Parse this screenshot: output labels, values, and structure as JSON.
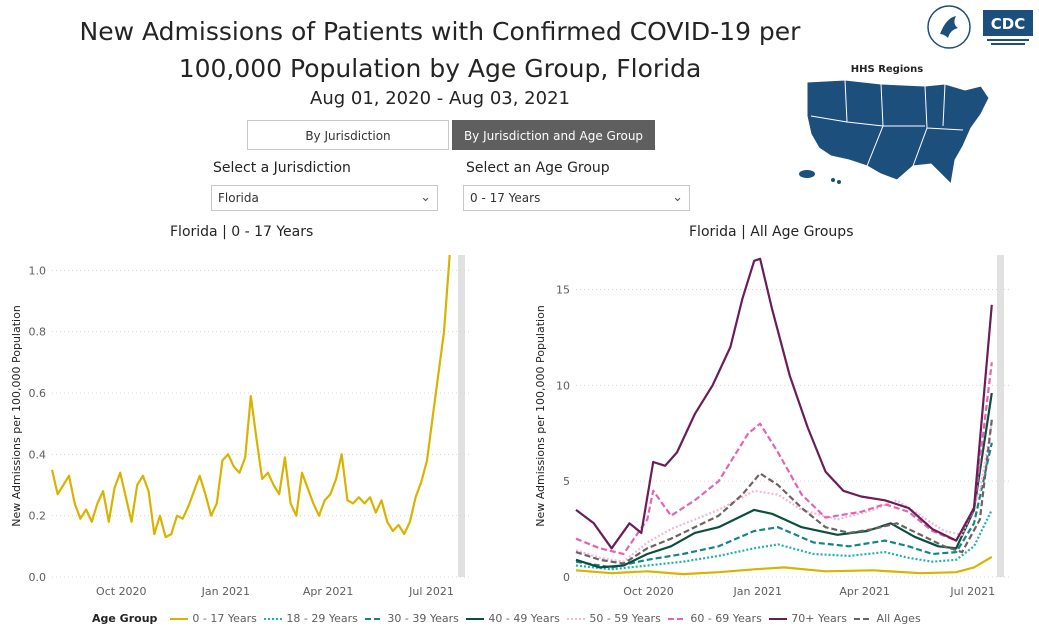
{
  "header": {
    "title_line1": "New Admissions of Patients with Confirmed COVID-19 per",
    "title_line2": "100,000 Population by Age Group, Florida",
    "date_range": "Aug 01, 2020 - Aug 03, 2021"
  },
  "logos": {
    "cdc": "CDC",
    "hhs_regions": "HHS Regions"
  },
  "tabs": {
    "by_jurisdiction": "By Jurisdiction",
    "by_jurisdiction_age": "By Jurisdiction and Age Group"
  },
  "filters": {
    "jurisdiction_label": "Select a Jurisdiction",
    "jurisdiction_value": "Florida",
    "age_label": "Select an Age Group",
    "age_value": "0 - 17 Years"
  },
  "colors": {
    "c0_17": "#d9b300",
    "c18_29": "#20b2aa",
    "c30_39": "#148585",
    "c40_49": "#0b4f3f",
    "c50_59": "#f2b8d9",
    "c60_69": "#e066b3",
    "c70": "#6b1d57",
    "call": "#6e6262",
    "map_fill": "#1d4f7c",
    "tab_active": "#5f5f5f"
  },
  "chart_data": [
    {
      "type": "line",
      "title": "Florida | 0 - 17 Years",
      "xlabel": "",
      "ylabel": "New Admissions per 100,000 Population",
      "ylim": [
        0,
        1.05
      ],
      "yticks": [
        "0.0",
        "0.2",
        "0.4",
        "0.6",
        "0.8",
        "1.0"
      ],
      "xticks": [
        "Oct 2020",
        "Jan 2021",
        "Apr 2021",
        "Jul 2021"
      ],
      "x_unit": "days since 2020-08-01",
      "xlim": [
        0,
        367
      ],
      "xtick_days": [
        61,
        153,
        243,
        334
      ],
      "series": [
        {
          "name": "0 - 17 Years",
          "color_key": "c0_17",
          "dash": "solid",
          "points": [
            [
              0,
              0.35
            ],
            [
              5,
              0.27
            ],
            [
              10,
              0.3
            ],
            [
              15,
              0.33
            ],
            [
              20,
              0.24
            ],
            [
              25,
              0.19
            ],
            [
              30,
              0.22
            ],
            [
              35,
              0.18
            ],
            [
              40,
              0.24
            ],
            [
              45,
              0.28
            ],
            [
              50,
              0.18
            ],
            [
              55,
              0.29
            ],
            [
              60,
              0.34
            ],
            [
              65,
              0.26
            ],
            [
              70,
              0.18
            ],
            [
              75,
              0.3
            ],
            [
              80,
              0.33
            ],
            [
              85,
              0.28
            ],
            [
              90,
              0.14
            ],
            [
              95,
              0.2
            ],
            [
              100,
              0.13
            ],
            [
              105,
              0.14
            ],
            [
              110,
              0.2
            ],
            [
              115,
              0.19
            ],
            [
              120,
              0.23
            ],
            [
              125,
              0.28
            ],
            [
              130,
              0.33
            ],
            [
              135,
              0.27
            ],
            [
              140,
              0.2
            ],
            [
              145,
              0.24
            ],
            [
              150,
              0.38
            ],
            [
              155,
              0.4
            ],
            [
              160,
              0.36
            ],
            [
              165,
              0.34
            ],
            [
              170,
              0.39
            ],
            [
              175,
              0.59
            ],
            [
              180,
              0.45
            ],
            [
              185,
              0.32
            ],
            [
              190,
              0.34
            ],
            [
              195,
              0.3
            ],
            [
              200,
              0.27
            ],
            [
              205,
              0.39
            ],
            [
              210,
              0.24
            ],
            [
              215,
              0.2
            ],
            [
              220,
              0.34
            ],
            [
              225,
              0.29
            ],
            [
              230,
              0.24
            ],
            [
              235,
              0.2
            ],
            [
              240,
              0.25
            ],
            [
              245,
              0.27
            ],
            [
              250,
              0.32
            ],
            [
              255,
              0.4
            ],
            [
              260,
              0.25
            ],
            [
              265,
              0.24
            ],
            [
              270,
              0.26
            ],
            [
              275,
              0.24
            ],
            [
              280,
              0.26
            ],
            [
              285,
              0.21
            ],
            [
              290,
              0.25
            ],
            [
              295,
              0.18
            ],
            [
              300,
              0.15
            ],
            [
              305,
              0.17
            ],
            [
              310,
              0.14
            ],
            [
              315,
              0.18
            ],
            [
              320,
              0.26
            ],
            [
              325,
              0.31
            ],
            [
              330,
              0.38
            ],
            [
              335,
              0.52
            ],
            [
              340,
              0.66
            ],
            [
              345,
              0.8
            ],
            [
              350,
              1.05
            ]
          ]
        }
      ]
    },
    {
      "type": "line",
      "title": "Florida | All Age Groups",
      "xlabel": "",
      "ylabel": "New Admissions per 100,000 Population",
      "ylim": [
        0,
        16.8
      ],
      "yticks": [
        "0",
        "5",
        "10",
        "15"
      ],
      "ytick_values": [
        0,
        5,
        10,
        15
      ],
      "xticks": [
        "Oct 2020",
        "Jan 2021",
        "Apr 2021",
        "Jul 2021"
      ],
      "x_unit": "days since 2020-08-01",
      "xlim": [
        0,
        367
      ],
      "xtick_days": [
        61,
        153,
        243,
        334
      ],
      "legend_title": "Age Group",
      "series": [
        {
          "name": "0 - 17 Years",
          "color_key": "c0_17",
          "dash": "solid",
          "points": [
            [
              0,
              0.35
            ],
            [
              30,
              0.2
            ],
            [
              60,
              0.3
            ],
            [
              90,
              0.15
            ],
            [
              120,
              0.25
            ],
            [
              150,
              0.4
            ],
            [
              175,
              0.5
            ],
            [
              210,
              0.3
            ],
            [
              250,
              0.35
            ],
            [
              290,
              0.2
            ],
            [
              320,
              0.25
            ],
            [
              335,
              0.5
            ],
            [
              350,
              1.05
            ]
          ]
        },
        {
          "name": "18 - 29 Years",
          "color_key": "c18_29",
          "dash": "dot",
          "points": [
            [
              0,
              0.6
            ],
            [
              30,
              0.4
            ],
            [
              60,
              0.6
            ],
            [
              90,
              0.8
            ],
            [
              120,
              1.1
            ],
            [
              150,
              1.5
            ],
            [
              170,
              1.7
            ],
            [
              200,
              1.2
            ],
            [
              230,
              1.1
            ],
            [
              260,
              1.3
            ],
            [
              280,
              1.0
            ],
            [
              300,
              0.8
            ],
            [
              320,
              0.9
            ],
            [
              335,
              1.6
            ],
            [
              350,
              3.5
            ]
          ]
        },
        {
          "name": "30 - 39 Years",
          "color_key": "c30_39",
          "dash": "dash",
          "points": [
            [
              0,
              0.8
            ],
            [
              30,
              0.5
            ],
            [
              60,
              0.9
            ],
            [
              90,
              1.2
            ],
            [
              120,
              1.6
            ],
            [
              150,
              2.4
            ],
            [
              170,
              2.6
            ],
            [
              200,
              1.8
            ],
            [
              230,
              1.6
            ],
            [
              260,
              1.9
            ],
            [
              280,
              1.6
            ],
            [
              300,
              1.2
            ],
            [
              320,
              1.3
            ],
            [
              335,
              2.8
            ],
            [
              350,
              7.0
            ]
          ]
        },
        {
          "name": "40 - 49 Years",
          "color_key": "c40_49",
          "dash": "solid",
          "points": [
            [
              0,
              0.9
            ],
            [
              20,
              0.5
            ],
            [
              40,
              0.6
            ],
            [
              60,
              1.2
            ],
            [
              80,
              1.6
            ],
            [
              100,
              2.3
            ],
            [
              120,
              2.6
            ],
            [
              150,
              3.5
            ],
            [
              165,
              3.3
            ],
            [
              190,
              2.6
            ],
            [
              220,
              2.2
            ],
            [
              245,
              2.4
            ],
            [
              265,
              2.8
            ],
            [
              285,
              2.1
            ],
            [
              305,
              1.6
            ],
            [
              320,
              1.5
            ],
            [
              335,
              3.5
            ],
            [
              350,
              9.6
            ]
          ]
        },
        {
          "name": "50 - 59 Years",
          "color_key": "c50_59",
          "dash": "dot",
          "points": [
            [
              0,
              1.4
            ],
            [
              20,
              1.0
            ],
            [
              40,
              0.8
            ],
            [
              60,
              1.8
            ],
            [
              80,
              2.5
            ],
            [
              100,
              3.0
            ],
            [
              120,
              3.5
            ],
            [
              150,
              4.5
            ],
            [
              170,
              4.3
            ],
            [
              190,
              3.5
            ],
            [
              220,
              3.0
            ],
            [
              250,
              3.5
            ],
            [
              270,
              4.0
            ],
            [
              290,
              3.2
            ],
            [
              310,
              2.4
            ],
            [
              325,
              2.2
            ],
            [
              340,
              4.5
            ],
            [
              350,
              8.0
            ]
          ]
        },
        {
          "name": "60 - 69 Years",
          "color_key": "c60_69",
          "dash": "dash",
          "points": [
            [
              0,
              2.0
            ],
            [
              20,
              1.5
            ],
            [
              40,
              1.2
            ],
            [
              60,
              3.0
            ],
            [
              65,
              4.5
            ],
            [
              80,
              3.2
            ],
            [
              100,
              4.0
            ],
            [
              120,
              5.0
            ],
            [
              145,
              7.5
            ],
            [
              155,
              8.0
            ],
            [
              170,
              6.5
            ],
            [
              190,
              4.3
            ],
            [
              210,
              3.1
            ],
            [
              240,
              3.4
            ],
            [
              260,
              3.8
            ],
            [
              280,
              3.4
            ],
            [
              300,
              2.4
            ],
            [
              320,
              1.9
            ],
            [
              335,
              3.5
            ],
            [
              350,
              11.2
            ]
          ]
        },
        {
          "name": "70+ Years",
          "color_key": "c70",
          "dash": "solid",
          "points": [
            [
              0,
              3.5
            ],
            [
              15,
              2.8
            ],
            [
              30,
              1.5
            ],
            [
              45,
              2.8
            ],
            [
              55,
              2.3
            ],
            [
              65,
              6.0
            ],
            [
              75,
              5.8
            ],
            [
              85,
              6.5
            ],
            [
              100,
              8.5
            ],
            [
              115,
              10.0
            ],
            [
              130,
              12.0
            ],
            [
              140,
              14.5
            ],
            [
              150,
              16.5
            ],
            [
              155,
              16.6
            ],
            [
              165,
              14.0
            ],
            [
              180,
              10.5
            ],
            [
              195,
              7.8
            ],
            [
              210,
              5.5
            ],
            [
              225,
              4.5
            ],
            [
              240,
              4.2
            ],
            [
              260,
              4.0
            ],
            [
              280,
              3.6
            ],
            [
              300,
              2.5
            ],
            [
              320,
              1.9
            ],
            [
              335,
              3.6
            ],
            [
              350,
              14.2
            ]
          ]
        },
        {
          "name": "All Ages",
          "color_key": "call",
          "dash": "dash",
          "points": [
            [
              0,
              1.3
            ],
            [
              20,
              0.9
            ],
            [
              40,
              0.7
            ],
            [
              60,
              1.5
            ],
            [
              80,
              2.0
            ],
            [
              100,
              2.6
            ],
            [
              120,
              3.2
            ],
            [
              140,
              4.3
            ],
            [
              155,
              5.4
            ],
            [
              170,
              4.8
            ],
            [
              190,
              3.6
            ],
            [
              210,
              2.6
            ],
            [
              230,
              2.3
            ],
            [
              250,
              2.5
            ],
            [
              270,
              2.8
            ],
            [
              290,
              2.2
            ],
            [
              310,
              1.6
            ],
            [
              325,
              1.3
            ],
            [
              340,
              3.0
            ],
            [
              350,
              8.2
            ]
          ]
        }
      ]
    }
  ]
}
